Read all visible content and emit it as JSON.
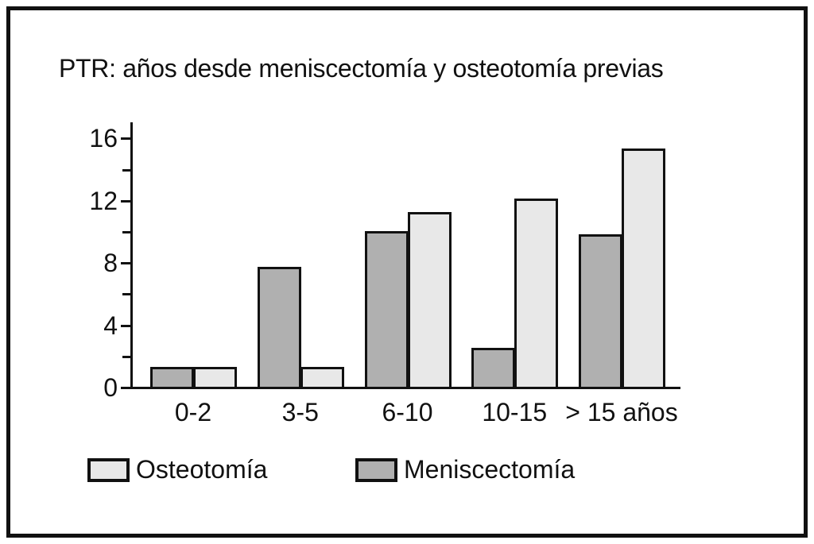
{
  "chart_data": {
    "type": "bar",
    "title": "PTR: años desde meniscectomía y osteotomía previas",
    "categories": [
      "0-2",
      "3-5",
      "6-10",
      "10-15",
      "> 15 años"
    ],
    "series": [
      {
        "name": "Meniscectomía",
        "color": "#b0b0b0",
        "values": [
          1.3,
          7.7,
          10.0,
          2.5,
          9.8
        ]
      },
      {
        "name": "Osteotomía",
        "color": "#e8e8e8",
        "values": [
          1.3,
          1.3,
          11.2,
          12.1,
          15.3
        ]
      }
    ],
    "xlabel": "",
    "ylabel": "",
    "ylim": [
      0,
      17
    ],
    "yticks": [
      0,
      4,
      8,
      12,
      16
    ],
    "minor_yticks": [
      2,
      6,
      10,
      14
    ],
    "grid": false,
    "bar_outline_color": "#111111",
    "axis_color": "#111111",
    "background_color": "#ffffff",
    "legend": {
      "position": "bottom",
      "entries": [
        "Osteotomía",
        "Meniscectomía"
      ]
    }
  }
}
